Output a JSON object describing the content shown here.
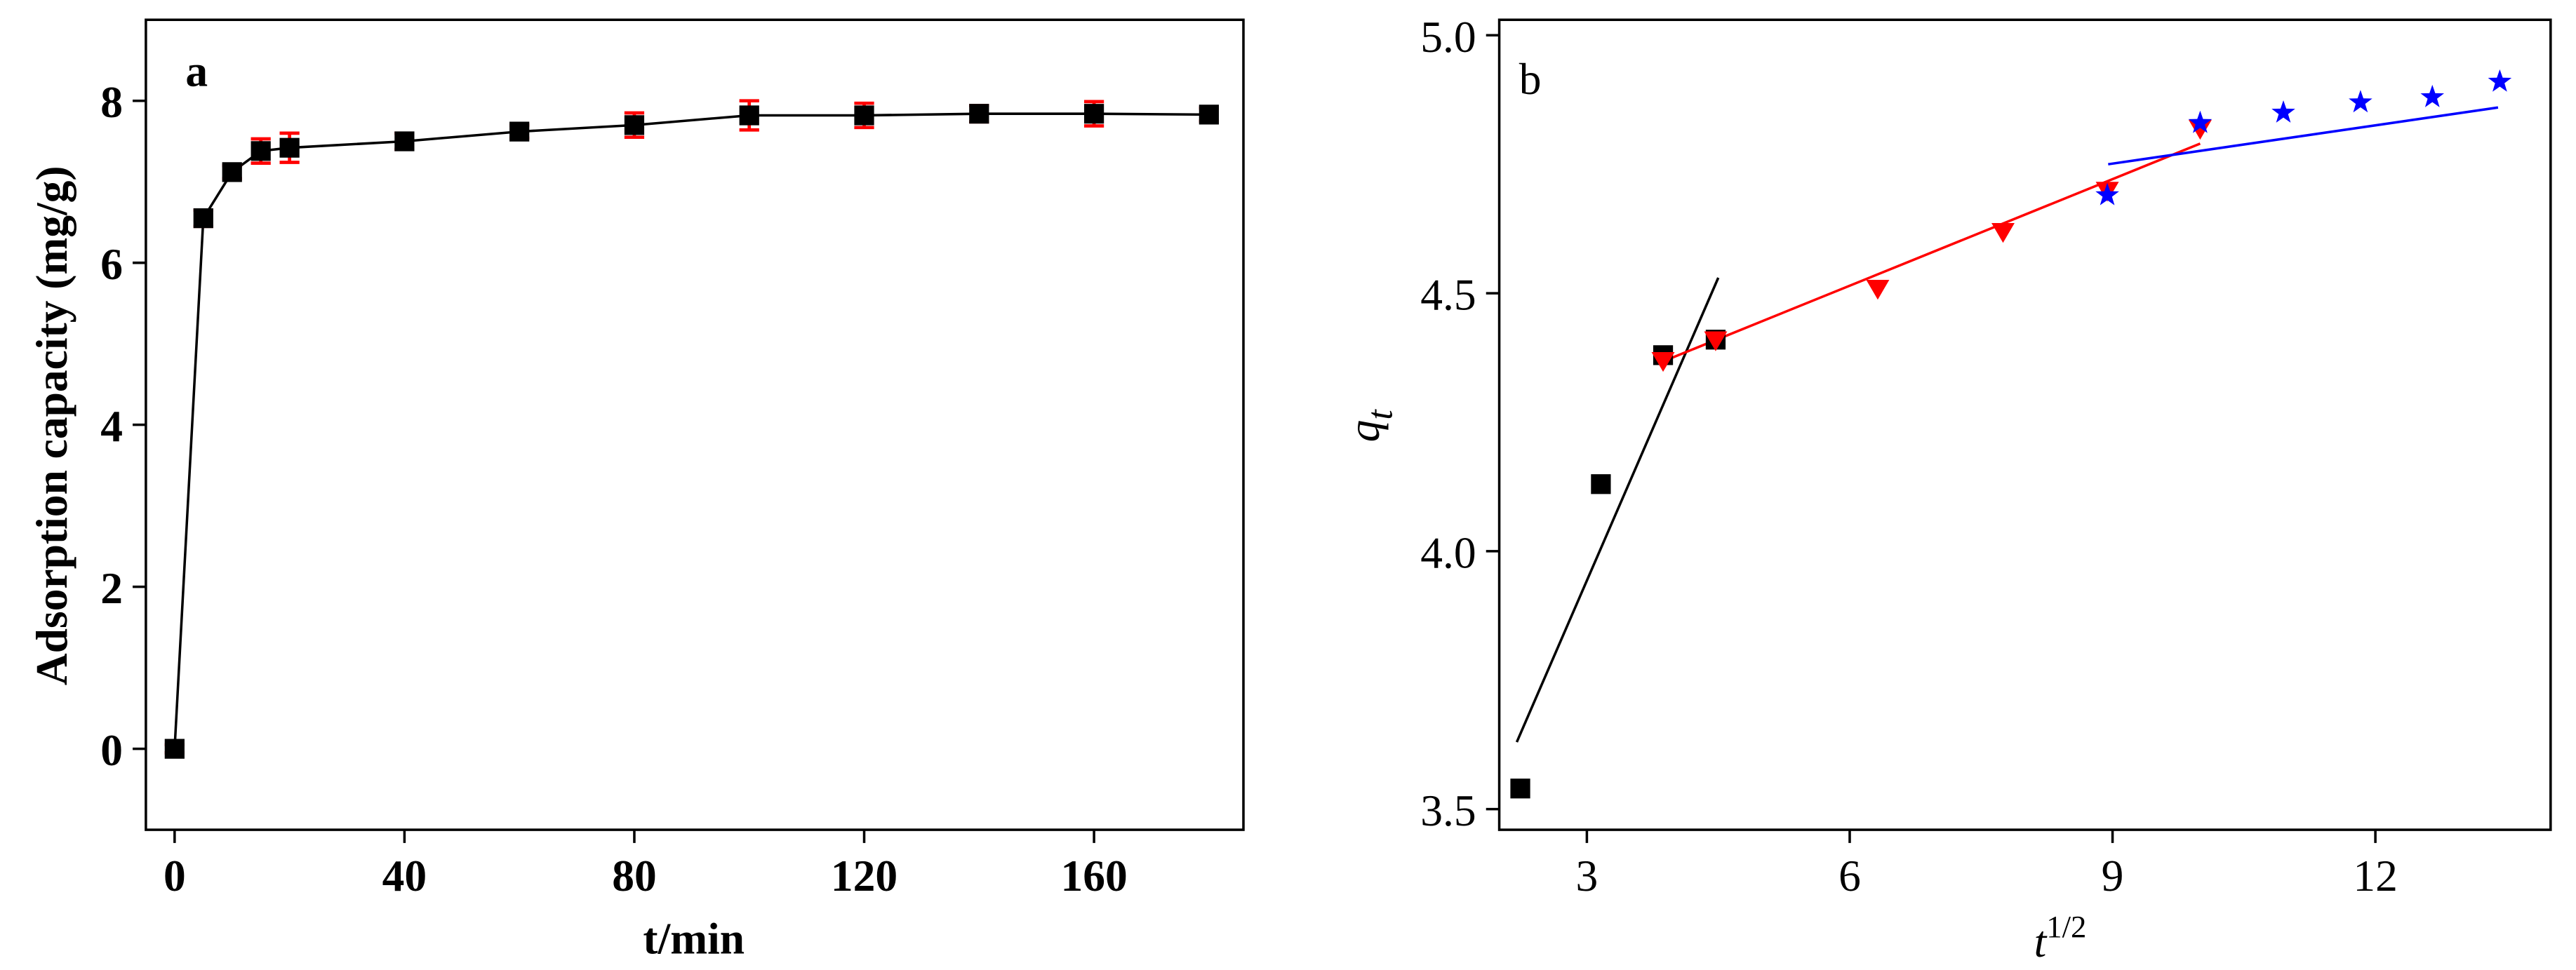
{
  "chart_data": [
    {
      "type": "line",
      "panel_label": "a",
      "xlabel": "t/min",
      "ylabel": "Adsorption capacity (mg/g)",
      "x": [
        0,
        5,
        10,
        15,
        20,
        40,
        60,
        80,
        100,
        120,
        140,
        160,
        180
      ],
      "series": [
        {
          "color": "#000000",
          "error_color": "#ff0000",
          "values": [
            0,
            6.55,
            7.12,
            7.38,
            7.42,
            7.5,
            7.62,
            7.7,
            7.82,
            7.82,
            7.84,
            7.84,
            7.83
          ],
          "errors": [
            0.05,
            0.1,
            0.08,
            0.15,
            0.18,
            0.1,
            0.08,
            0.15,
            0.18,
            0.15,
            0.1,
            0.15,
            0.08
          ]
        }
      ],
      "xlim": [
        -5,
        186
      ],
      "ylim": [
        -1,
        9
      ],
      "xticks": [
        0,
        40,
        80,
        120,
        160
      ],
      "yticks": [
        0,
        2,
        4,
        6,
        8
      ]
    },
    {
      "type": "scatter",
      "panel_label": "b",
      "xlabel": {
        "text": "t",
        "superscript": "1/2"
      },
      "ylabel": {
        "text": "q",
        "subscript": "t"
      },
      "series": [
        {
          "color": "#000000",
          "marker": "square",
          "x": [
            2.24,
            3.16,
            3.87,
            4.47
          ],
          "values": [
            3.54,
            4.13,
            4.38,
            4.41
          ]
        },
        {
          "color": "#ff0000",
          "marker": "triangle-down",
          "x": [
            3.87,
            4.47,
            6.32,
            7.75,
            8.94,
            10.0
          ],
          "values": [
            4.37,
            4.41,
            4.51,
            4.62,
            4.7,
            4.82
          ]
        },
        {
          "color": "#0000ff",
          "marker": "star",
          "x": [
            8.94,
            10.0,
            10.95,
            11.83,
            12.65,
            13.42
          ],
          "values": [
            4.69,
            4.83,
            4.85,
            4.87,
            4.88,
            4.91
          ]
        }
      ],
      "fit_lines": [
        {
          "color": "#000000",
          "x": [
            2.2,
            4.5
          ],
          "y": [
            3.63,
            4.53
          ]
        },
        {
          "color": "#ff0000",
          "x": [
            3.9,
            10.0
          ],
          "y": [
            4.37,
            4.79
          ]
        },
        {
          "color": "#0000ff",
          "x": [
            8.95,
            13.4
          ],
          "y": [
            4.75,
            4.86
          ]
        }
      ],
      "xlim": [
        2,
        14
      ],
      "ylim": [
        3.46,
        5.03
      ],
      "xticks": [
        3,
        6,
        9,
        12
      ],
      "yticks": [
        3.5,
        {
          "value": 4,
          "label": "4.0"
        },
        4.5,
        {
          "value": 5,
          "label": "5.0"
        }
      ]
    }
  ]
}
